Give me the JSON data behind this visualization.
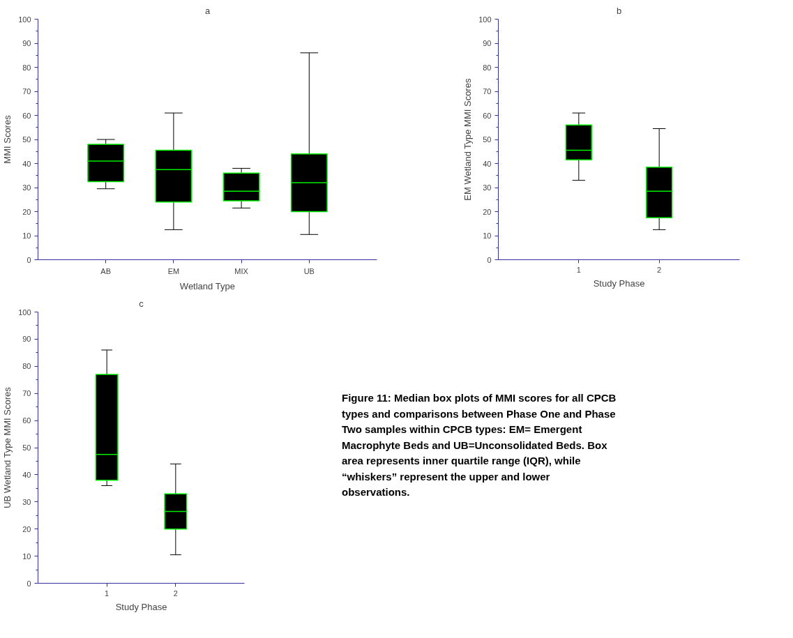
{
  "chart_data": [
    {
      "type": "box",
      "title": "a",
      "xlabel": "Wetland Type",
      "ylabel": "MMI Scores",
      "categories": [
        "AB",
        "EM",
        "MIX",
        "UB"
      ],
      "ylim": [
        0,
        100
      ],
      "yticks": [
        0,
        {
          "value": 5,
          "label": null
        },
        10,
        {
          "value": 15,
          "label": null
        },
        20,
        {
          "value": 25,
          "label": null
        },
        30,
        {
          "value": 35,
          "label": null
        },
        40,
        {
          "value": 45,
          "label": null
        },
        50,
        {
          "value": 55,
          "label": null
        },
        60,
        {
          "value": 65,
          "label": null
        },
        70,
        {
          "value": 75,
          "label": null
        },
        80,
        {
          "value": 85,
          "label": null
        },
        90,
        {
          "value": 95,
          "label": null
        },
        100
      ],
      "series": [
        {
          "color": "#000000",
          "boxes": [
            {
              "low": 29.5,
              "q1": 32.5,
              "median": 41,
              "q3": 48,
              "high": 50
            },
            {
              "low": 12.5,
              "q1": 24,
              "median": 37.5,
              "q3": 45.5,
              "high": 61
            },
            {
              "low": 21.5,
              "q1": 24.5,
              "median": 28.5,
              "q3": 36,
              "high": 38
            },
            {
              "low": 10.5,
              "q1": 20,
              "median": 32,
              "q3": 44,
              "high": 86
            }
          ]
        }
      ]
    },
    {
      "type": "box",
      "title": "b",
      "xlabel": "Study Phase",
      "ylabel": "EM Wetland Type MMI Scores",
      "categories": [
        "1",
        "2"
      ],
      "ylim": [
        0,
        100
      ],
      "yticks": [
        0,
        {
          "value": 5,
          "label": null
        },
        10,
        {
          "value": 15,
          "label": null
        },
        20,
        {
          "value": 25,
          "label": null
        },
        30,
        {
          "value": 35,
          "label": null
        },
        40,
        {
          "value": 45,
          "label": null
        },
        50,
        {
          "value": 55,
          "label": null
        },
        60,
        {
          "value": 65,
          "label": null
        },
        70,
        {
          "value": 75,
          "label": null
        },
        80,
        {
          "value": 85,
          "label": null
        },
        90,
        {
          "value": 95,
          "label": null
        },
        100
      ],
      "series": [
        {
          "color": "#000000",
          "boxes": [
            {
              "low": 33,
              "q1": 41.5,
              "median": 45.5,
              "q3": 56,
              "high": 61
            },
            {
              "low": 12.5,
              "q1": 17.5,
              "median": 28.5,
              "q3": 38.5,
              "high": 54.5
            }
          ]
        }
      ]
    },
    {
      "type": "box",
      "title": "c",
      "xlabel": "Study Phase",
      "ylabel": "UB Wetland Type MMI Scores",
      "categories": [
        "1",
        "2"
      ],
      "ylim": [
        0,
        100
      ],
      "yticks": [
        0,
        {
          "value": 5,
          "label": null
        },
        10,
        {
          "value": 15,
          "label": null
        },
        20,
        {
          "value": 25,
          "label": null
        },
        30,
        {
          "value": 35,
          "label": null
        },
        40,
        {
          "value": 45,
          "label": null
        },
        50,
        {
          "value": 55,
          "label": null
        },
        60,
        {
          "value": 65,
          "label": null
        },
        70,
        {
          "value": 75,
          "label": null
        },
        80,
        {
          "value": 85,
          "label": null
        },
        90,
        {
          "value": 95,
          "label": null
        },
        100
      ],
      "series": [
        {
          "color": "#000000",
          "boxes": [
            {
              "low": 36,
              "q1": 38,
              "median": 47.5,
              "q3": 77,
              "high": 86
            },
            {
              "low": 10.5,
              "q1": 20,
              "median": 26.5,
              "q3": 33,
              "high": 44
            }
          ]
        }
      ],
      "annotations": [
        "Figure 11: Median box plots of MMI scores for all CPCB types and comparisons between Phase One and Phase Two samples within CPCB types: EM= Emergent Macrophyte Beds and UB=Unconsolidated Beds.  Box area represents inner quartile range (IQR), while “whiskers” represent the upper and lower observations."
      ]
    }
  ]
}
